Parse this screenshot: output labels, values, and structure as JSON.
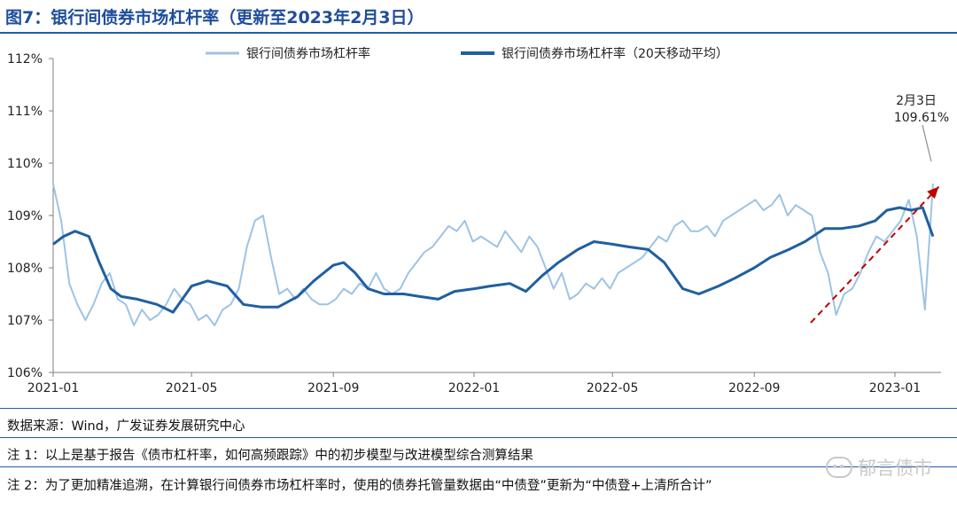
{
  "title": "图7：银行间债券市场杠杆率（更新至2023年2月3日）",
  "chart_data": {
    "type": "line",
    "x_ticks": [
      "2021-01",
      "2021-05",
      "2021-09",
      "2022-01",
      "2022-05",
      "2022-09",
      "2023-01"
    ],
    "y_ticks": [
      "106%",
      "107%",
      "108%",
      "109%",
      "110%",
      "111%",
      "112%"
    ],
    "ylim": [
      106,
      112
    ],
    "xlim": [
      "2021-01-01",
      "2023-02-10"
    ],
    "grid": false,
    "legend_position": "top",
    "series": [
      {
        "name": "银行间债券市场杠杆率",
        "color": "#9dc3e6",
        "points": [
          [
            "2021-01-01",
            109.6
          ],
          [
            "2021-01-08",
            108.9
          ],
          [
            "2021-01-15",
            107.7
          ],
          [
            "2021-01-22",
            107.3
          ],
          [
            "2021-01-29",
            107.0
          ],
          [
            "2021-02-05",
            107.3
          ],
          [
            "2021-02-12",
            107.7
          ],
          [
            "2021-02-19",
            107.9
          ],
          [
            "2021-02-26",
            107.4
          ],
          [
            "2021-03-05",
            107.3
          ],
          [
            "2021-03-12",
            106.9
          ],
          [
            "2021-03-19",
            107.2
          ],
          [
            "2021-03-26",
            107.0
          ],
          [
            "2021-04-02",
            107.1
          ],
          [
            "2021-04-09",
            107.3
          ],
          [
            "2021-04-16",
            107.6
          ],
          [
            "2021-04-23",
            107.4
          ],
          [
            "2021-04-30",
            107.3
          ],
          [
            "2021-05-07",
            107.0
          ],
          [
            "2021-05-14",
            107.1
          ],
          [
            "2021-05-21",
            106.9
          ],
          [
            "2021-05-28",
            107.2
          ],
          [
            "2021-06-04",
            107.3
          ],
          [
            "2021-06-11",
            107.6
          ],
          [
            "2021-06-18",
            108.4
          ],
          [
            "2021-06-25",
            108.9
          ],
          [
            "2021-07-02",
            109.0
          ],
          [
            "2021-07-09",
            108.2
          ],
          [
            "2021-07-16",
            107.5
          ],
          [
            "2021-07-23",
            107.6
          ],
          [
            "2021-07-30",
            107.4
          ],
          [
            "2021-08-06",
            107.6
          ],
          [
            "2021-08-13",
            107.4
          ],
          [
            "2021-08-20",
            107.3
          ],
          [
            "2021-08-27",
            107.3
          ],
          [
            "2021-09-03",
            107.4
          ],
          [
            "2021-09-10",
            107.6
          ],
          [
            "2021-09-17",
            107.5
          ],
          [
            "2021-09-24",
            107.7
          ],
          [
            "2021-10-01",
            107.6
          ],
          [
            "2021-10-08",
            107.9
          ],
          [
            "2021-10-15",
            107.6
          ],
          [
            "2021-10-22",
            107.5
          ],
          [
            "2021-10-29",
            107.6
          ],
          [
            "2021-11-05",
            107.9
          ],
          [
            "2021-11-12",
            108.1
          ],
          [
            "2021-11-19",
            108.3
          ],
          [
            "2021-11-26",
            108.4
          ],
          [
            "2021-12-03",
            108.6
          ],
          [
            "2021-12-10",
            108.8
          ],
          [
            "2021-12-17",
            108.7
          ],
          [
            "2021-12-24",
            108.9
          ],
          [
            "2021-12-31",
            108.5
          ],
          [
            "2022-01-07",
            108.6
          ],
          [
            "2022-01-14",
            108.5
          ],
          [
            "2022-01-21",
            108.4
          ],
          [
            "2022-01-28",
            108.7
          ],
          [
            "2022-02-04",
            108.5
          ],
          [
            "2022-02-11",
            108.3
          ],
          [
            "2022-02-18",
            108.6
          ],
          [
            "2022-02-25",
            108.4
          ],
          [
            "2022-03-04",
            108.0
          ],
          [
            "2022-03-11",
            107.6
          ],
          [
            "2022-03-18",
            107.9
          ],
          [
            "2022-03-25",
            107.4
          ],
          [
            "2022-04-01",
            107.5
          ],
          [
            "2022-04-08",
            107.7
          ],
          [
            "2022-04-15",
            107.6
          ],
          [
            "2022-04-22",
            107.8
          ],
          [
            "2022-04-29",
            107.6
          ],
          [
            "2022-05-06",
            107.9
          ],
          [
            "2022-05-13",
            108.0
          ],
          [
            "2022-05-20",
            108.1
          ],
          [
            "2022-05-27",
            108.2
          ],
          [
            "2022-06-03",
            108.4
          ],
          [
            "2022-06-10",
            108.6
          ],
          [
            "2022-06-17",
            108.5
          ],
          [
            "2022-06-24",
            108.8
          ],
          [
            "2022-07-01",
            108.9
          ],
          [
            "2022-07-08",
            108.7
          ],
          [
            "2022-07-15",
            108.7
          ],
          [
            "2022-07-22",
            108.8
          ],
          [
            "2022-07-29",
            108.6
          ],
          [
            "2022-08-05",
            108.9
          ],
          [
            "2022-08-12",
            109.0
          ],
          [
            "2022-08-19",
            109.1
          ],
          [
            "2022-08-26",
            109.2
          ],
          [
            "2022-09-02",
            109.3
          ],
          [
            "2022-09-09",
            109.1
          ],
          [
            "2022-09-16",
            109.2
          ],
          [
            "2022-09-23",
            109.4
          ],
          [
            "2022-09-30",
            109.0
          ],
          [
            "2022-10-07",
            109.2
          ],
          [
            "2022-10-14",
            109.1
          ],
          [
            "2022-10-21",
            109.0
          ],
          [
            "2022-10-28",
            108.3
          ],
          [
            "2022-11-04",
            107.9
          ],
          [
            "2022-11-11",
            107.1
          ],
          [
            "2022-11-18",
            107.5
          ],
          [
            "2022-11-25",
            107.6
          ],
          [
            "2022-12-02",
            107.9
          ],
          [
            "2022-12-09",
            108.3
          ],
          [
            "2022-12-16",
            108.6
          ],
          [
            "2022-12-23",
            108.5
          ],
          [
            "2022-12-30",
            108.7
          ],
          [
            "2023-01-06",
            108.9
          ],
          [
            "2023-01-13",
            109.3
          ],
          [
            "2023-01-20",
            108.6
          ],
          [
            "2023-01-27",
            107.2
          ],
          [
            "2023-02-03",
            109.61
          ]
        ]
      },
      {
        "name": "银行间债券市场杠杆率（20天移动平均）",
        "color": "#1f5fa0",
        "points": [
          [
            "2021-01-01",
            108.45
          ],
          [
            "2021-01-10",
            108.6
          ],
          [
            "2021-01-20",
            108.7
          ],
          [
            "2021-02-01",
            108.6
          ],
          [
            "2021-02-10",
            108.1
          ],
          [
            "2021-02-20",
            107.6
          ],
          [
            "2021-03-01",
            107.45
          ],
          [
            "2021-03-15",
            107.4
          ],
          [
            "2021-04-01",
            107.3
          ],
          [
            "2021-04-15",
            107.15
          ],
          [
            "2021-05-01",
            107.65
          ],
          [
            "2021-05-15",
            107.75
          ],
          [
            "2021-06-01",
            107.65
          ],
          [
            "2021-06-15",
            107.3
          ],
          [
            "2021-07-01",
            107.25
          ],
          [
            "2021-07-15",
            107.25
          ],
          [
            "2021-08-01",
            107.45
          ],
          [
            "2021-08-15",
            107.75
          ],
          [
            "2021-09-01",
            108.05
          ],
          [
            "2021-09-10",
            108.1
          ],
          [
            "2021-09-20",
            107.9
          ],
          [
            "2021-10-01",
            107.6
          ],
          [
            "2021-10-15",
            107.5
          ],
          [
            "2021-11-01",
            107.5
          ],
          [
            "2021-11-15",
            107.45
          ],
          [
            "2021-12-01",
            107.4
          ],
          [
            "2021-12-15",
            107.55
          ],
          [
            "2022-01-01",
            107.6
          ],
          [
            "2022-01-15",
            107.65
          ],
          [
            "2022-02-01",
            107.7
          ],
          [
            "2022-02-15",
            107.55
          ],
          [
            "2022-03-01",
            107.85
          ],
          [
            "2022-03-15",
            108.1
          ],
          [
            "2022-04-01",
            108.35
          ],
          [
            "2022-04-15",
            108.5
          ],
          [
            "2022-05-01",
            108.45
          ],
          [
            "2022-05-15",
            108.4
          ],
          [
            "2022-06-01",
            108.35
          ],
          [
            "2022-06-15",
            108.1
          ],
          [
            "2022-07-01",
            107.6
          ],
          [
            "2022-07-15",
            107.5
          ],
          [
            "2022-08-01",
            107.65
          ],
          [
            "2022-08-15",
            107.8
          ],
          [
            "2022-09-01",
            108.0
          ],
          [
            "2022-09-15",
            108.2
          ],
          [
            "2022-10-01",
            108.35
          ],
          [
            "2022-10-15",
            108.5
          ],
          [
            "2022-11-01",
            108.75
          ],
          [
            "2022-11-15",
            108.75
          ],
          [
            "2022-12-01",
            108.8
          ],
          [
            "2022-12-15",
            108.9
          ],
          [
            "2022-12-25",
            109.1
          ],
          [
            "2023-01-05",
            109.15
          ],
          [
            "2023-01-15",
            109.1
          ],
          [
            "2023-01-25",
            109.15
          ],
          [
            "2023-02-03",
            108.6
          ]
        ]
      }
    ],
    "annotation": {
      "date_label": "2月3日",
      "value_label": "109.61%",
      "x": "2023-02-03",
      "y": 109.61
    },
    "trend_arrow": {
      "from": [
        "2022-10-20",
        106.95
      ],
      "to": [
        "2023-02-08",
        109.55
      ],
      "color": "#c00000"
    }
  },
  "notes": [
    "数据来源：Wind，广发证券发展研究中心",
    "注 1：以上是基于报告《债市杠杆率，如何高频跟踪》中的初步模型与改进模型综合测算结果",
    "注 2：为了更加精准追溯，在计算银行间债券市场杠杆率时，使用的债券托管量数据由“中债登”更新为“中债登+上清所合计”"
  ],
  "watermark": "郁言债市",
  "watermark_icon": "wechat-icon"
}
